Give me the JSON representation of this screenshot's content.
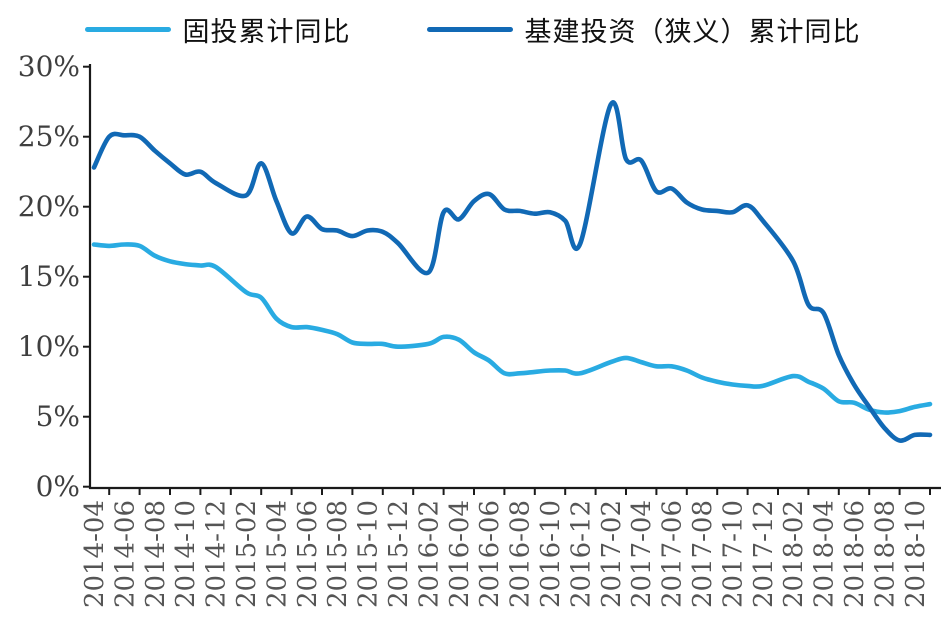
{
  "legend": [
    {
      "label": "固投累计同比",
      "color": "#29ABE2"
    },
    {
      "label": "基建投资（狭义）累计同比",
      "color": "#1169B5"
    }
  ],
  "chart_data": {
    "type": "line",
    "title": "",
    "xlabel": "",
    "ylabel": "",
    "ylim": [
      0,
      30
    ],
    "y_tick_step": 5,
    "y_tick_labels": [
      "0%",
      "5%",
      "10%",
      "15%",
      "20%",
      "25%",
      "30%"
    ],
    "grid": false,
    "legend_position": "top",
    "x": [
      "2014-04",
      "2014-05",
      "2014-06",
      "2014-07",
      "2014-08",
      "2014-09",
      "2014-10",
      "2014-11",
      "2014-12",
      "2015-01",
      "2015-02",
      "2015-03",
      "2015-04",
      "2015-05",
      "2015-06",
      "2015-07",
      "2015-08",
      "2015-09",
      "2015-10",
      "2015-11",
      "2015-12",
      "2016-01",
      "2016-02",
      "2016-03",
      "2016-04",
      "2016-05",
      "2016-06",
      "2016-07",
      "2016-08",
      "2016-09",
      "2016-10",
      "2016-11",
      "2016-12",
      "2017-01",
      "2017-02",
      "2017-03",
      "2017-04",
      "2017-05",
      "2017-06",
      "2017-07",
      "2017-08",
      "2017-09",
      "2017-10",
      "2017-11",
      "2017-12",
      "2018-01",
      "2018-02",
      "2018-03",
      "2018-04",
      "2018-05",
      "2018-06",
      "2018-07",
      "2018-08",
      "2018-09",
      "2018-10",
      "2018-11"
    ],
    "x_tick_labels": [
      "2014-04",
      "2014-06",
      "2014-08",
      "2014-10",
      "2014-12",
      "2015-02",
      "2015-04",
      "2015-06",
      "2015-08",
      "2015-10",
      "2015-12",
      "2016-02",
      "2016-04",
      "2016-06",
      "2016-08",
      "2016-10",
      "2016-12",
      "2017-02",
      "2017-04",
      "2017-06",
      "2017-08",
      "2017-10",
      "2017-12",
      "2018-02",
      "2018-04",
      "2018-06",
      "2018-08",
      "2018-10"
    ],
    "series": [
      {
        "name": "固投累计同比",
        "color": "#29ABE2",
        "values": [
          17.3,
          17.2,
          17.3,
          17.2,
          16.5,
          16.1,
          15.9,
          15.8,
          15.7,
          null,
          13.9,
          13.5,
          12.0,
          11.4,
          11.4,
          11.2,
          10.9,
          10.3,
          10.2,
          10.2,
          10.0,
          null,
          10.2,
          10.7,
          10.5,
          9.6,
          9.0,
          8.1,
          8.1,
          8.2,
          8.3,
          8.3,
          8.1,
          null,
          8.9,
          9.2,
          8.9,
          8.6,
          8.6,
          8.3,
          7.8,
          7.5,
          7.3,
          7.2,
          7.2,
          null,
          7.9,
          7.5,
          7.0,
          6.1,
          6.0,
          5.5,
          5.3,
          5.4,
          5.7,
          5.9
        ]
      },
      {
        "name": "基建投资（狭义）累计同比",
        "color": "#1169B5",
        "values": [
          22.8,
          25.0,
          25.1,
          25.0,
          24.0,
          23.1,
          22.3,
          22.5,
          21.7,
          null,
          20.8,
          23.1,
          20.4,
          18.1,
          19.3,
          18.4,
          18.3,
          17.9,
          18.3,
          18.2,
          17.4,
          null,
          15.3,
          19.6,
          19.1,
          20.4,
          20.9,
          19.8,
          19.7,
          19.5,
          19.6,
          19.0,
          17.4,
          null,
          27.3,
          23.4,
          23.3,
          21.1,
          21.3,
          20.3,
          19.8,
          19.7,
          19.6,
          20.1,
          19.0,
          null,
          16.1,
          13.0,
          12.4,
          9.4,
          7.3,
          5.7,
          4.2,
          3.3,
          3.7,
          3.7
        ]
      }
    ],
    "axis_color": "#1a1a1a",
    "y_label_color": "#3f3f3f",
    "x_label_color": "#555555"
  }
}
